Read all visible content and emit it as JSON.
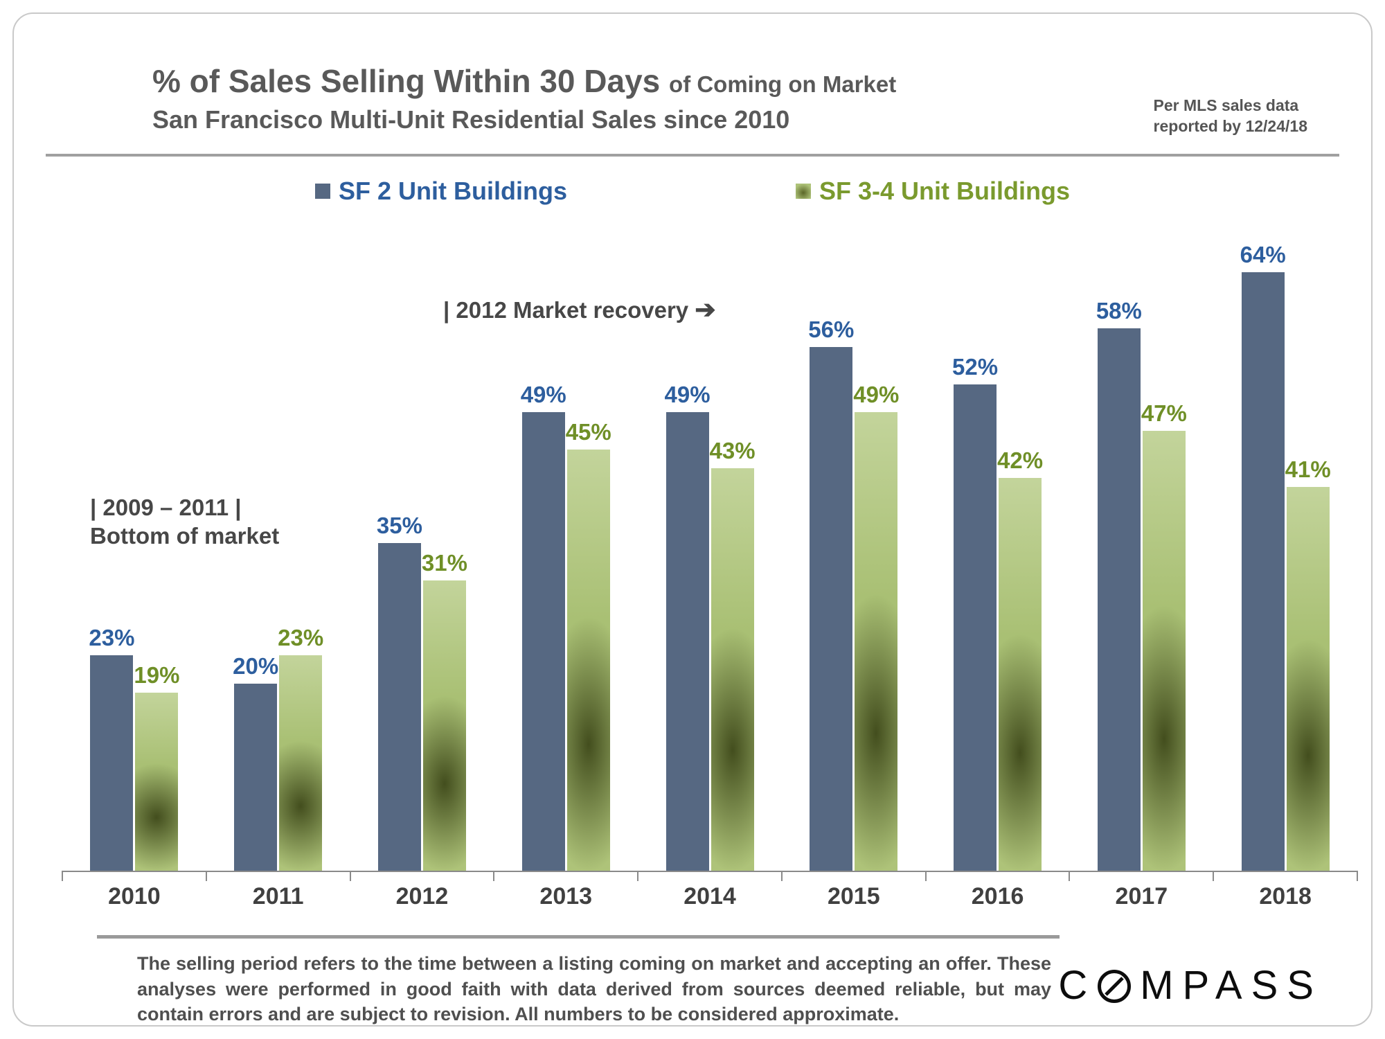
{
  "header": {
    "title_main": "% of Sales Selling Within 30 Days",
    "title_suffix": "of Coming on Market",
    "subtitle": "San Francisco Multi-Unit Residential Sales since 2010",
    "note_line1": "Per MLS sales data",
    "note_line2": "reported by 12/24/18"
  },
  "legend": [
    {
      "label": "SF 2 Unit Buildings",
      "color": "#566882",
      "label_color": "#2d5e9e"
    },
    {
      "label": "SF 3-4 Unit Buildings",
      "color": "#aec379",
      "label_color": "#7a9a2e"
    }
  ],
  "annotations": {
    "bottom_market_line1": "| 2009 – 2011 |",
    "bottom_market_line2": "Bottom of market",
    "recovery_text": "|  2012 Market recovery",
    "recovery_arrow": "➔"
  },
  "chart_data": {
    "type": "bar",
    "title": "% of Sales Selling Within 30 Days of Coming on Market",
    "subtitle": "San Francisco Multi-Unit Residential Sales since 2010",
    "categories": [
      "2010",
      "2011",
      "2012",
      "2013",
      "2014",
      "2015",
      "2016",
      "2017",
      "2018"
    ],
    "series": [
      {
        "name": "SF 2 Unit Buildings",
        "color": "#566882",
        "label_color": "#2d5e9e",
        "values": [
          23,
          20,
          35,
          49,
          49,
          56,
          52,
          58,
          64
        ]
      },
      {
        "name": "SF 3-4 Unit Buildings",
        "color": "#aec379",
        "label_color": "#6f8f27",
        "values": [
          19,
          23,
          31,
          45,
          43,
          49,
          42,
          47,
          41
        ]
      }
    ],
    "value_suffix": "%",
    "ylim": [
      0,
      70
    ],
    "grid": false,
    "legend_position": "top"
  },
  "footer": {
    "disclaimer": "The selling period refers to the time between a listing coming on market and accepting an offer. These analyses were performed in good faith with data derived from sources deemed reliable, but may contain errors and are subject to revision. All numbers to be considered approximate.",
    "logo": "COMPASS"
  }
}
